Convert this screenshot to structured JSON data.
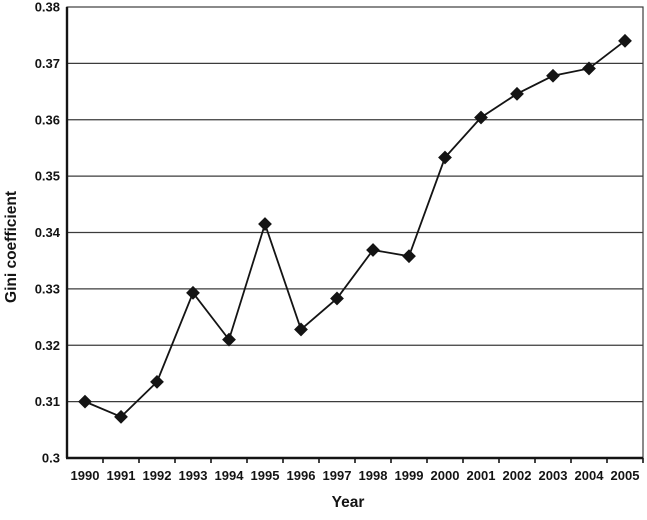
{
  "chart_data": {
    "type": "line",
    "title": "",
    "xlabel": "Year",
    "ylabel": "Gini coefficient",
    "categories": [
      "1990",
      "1991",
      "1992",
      "1993",
      "1994",
      "1995",
      "1996",
      "1997",
      "1998",
      "1999",
      "2000",
      "2001",
      "2002",
      "2003",
      "2004",
      "2005"
    ],
    "series": [
      {
        "name": "Gini coefficient",
        "values": [
          0.31,
          0.3073,
          0.3135,
          0.3293,
          0.321,
          0.3415,
          0.3228,
          0.3283,
          0.3369,
          0.3358,
          0.3533,
          0.3604,
          0.3646,
          0.3678,
          0.3691,
          0.374
        ]
      }
    ],
    "ylim": [
      0.3,
      0.38
    ],
    "ytick_labels": [
      "0.3",
      "0.31",
      "0.32",
      "0.33",
      "0.34",
      "0.35",
      "0.36",
      "0.37",
      "0.38"
    ],
    "grid": "horizontal",
    "legend": "none",
    "marker": "diamond",
    "colors": {
      "ink": "#141414",
      "grid": "#3c3c3c",
      "background": "#ffffff"
    }
  }
}
